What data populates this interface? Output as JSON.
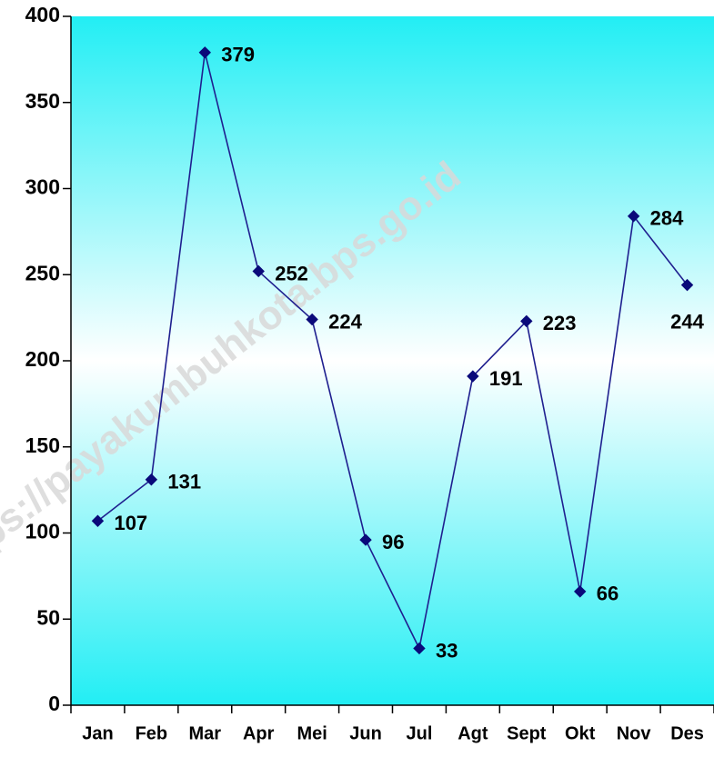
{
  "chart_data": {
    "type": "line",
    "categories": [
      "Jan",
      "Feb",
      "Mar",
      "Apr",
      "Mei",
      "Jun",
      "Jul",
      "Agt",
      "Sept",
      "Okt",
      "Nov",
      "Des"
    ],
    "series": [
      {
        "values": [
          107,
          131,
          379,
          252,
          224,
          96,
          33,
          191,
          223,
          66,
          284,
          244
        ]
      }
    ],
    "ylim": [
      0,
      400
    ],
    "yticks": [
      0,
      50,
      100,
      150,
      200,
      250,
      300,
      350,
      400
    ],
    "title": "",
    "xlabel": "",
    "ylabel": "",
    "grid": false,
    "legend": "none",
    "data_labels": true,
    "colors": {
      "line": "#1f1f8f",
      "marker": "#0a0a7a",
      "plot_bg_edge": "#22eef4",
      "plot_bg_center": "#ffffff"
    }
  },
  "watermark": "https://payakumbuhkota.bps.go.id"
}
